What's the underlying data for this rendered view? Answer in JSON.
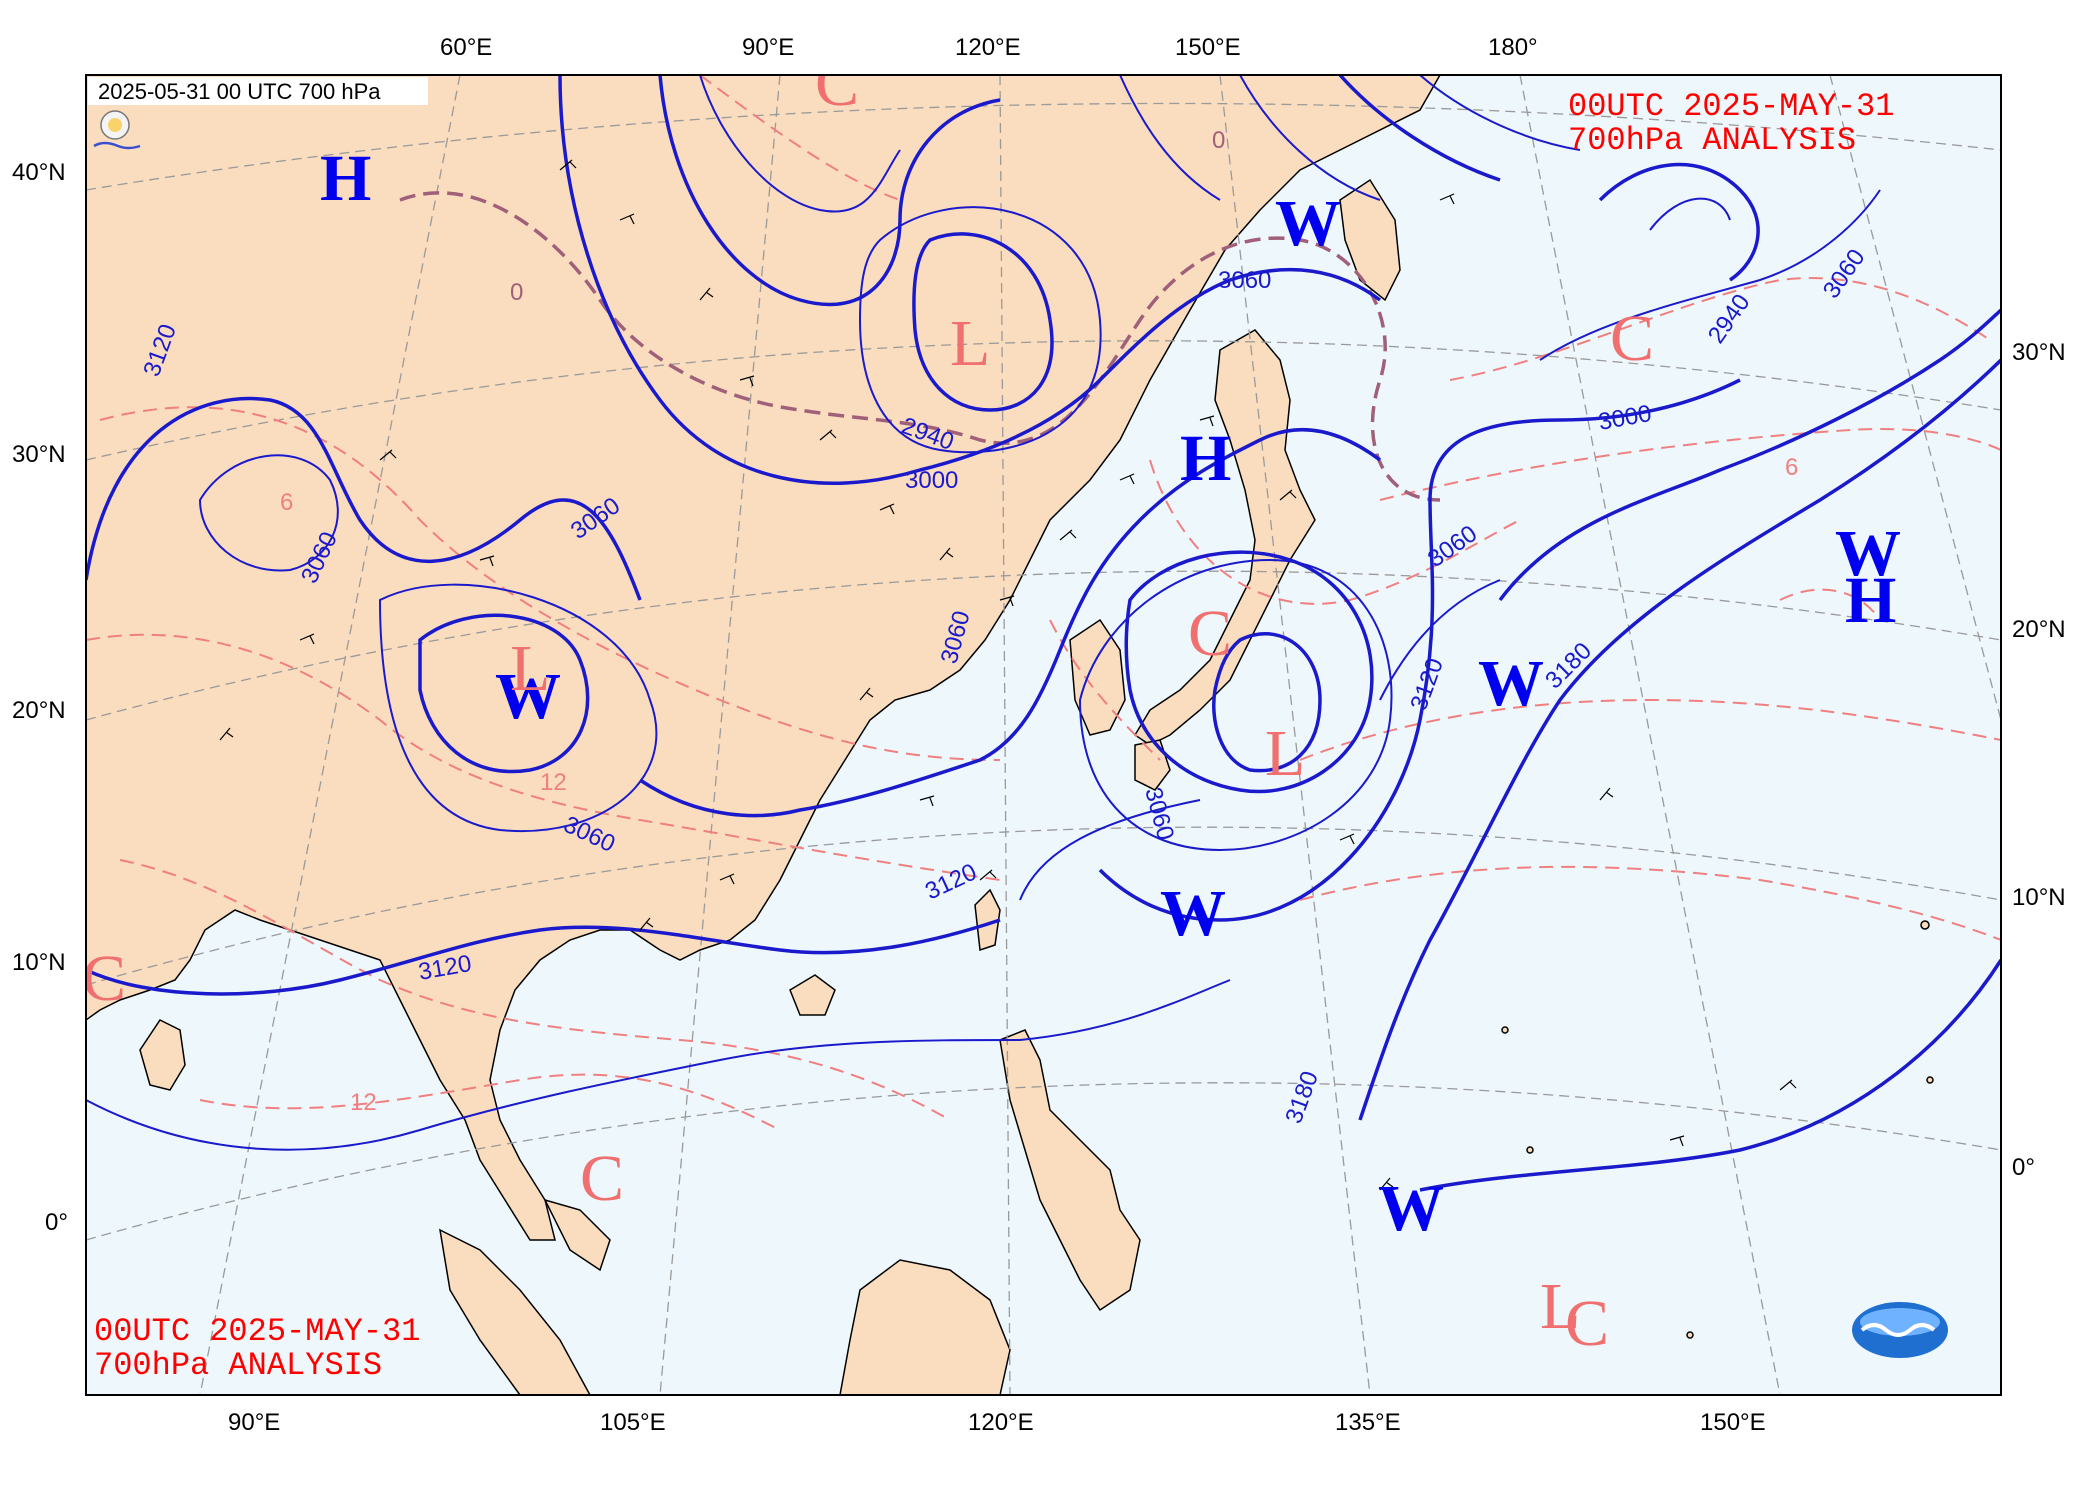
{
  "stamp": "2025-05-31 00 UTC 700 hPa",
  "title": {
    "line1": "00UTC  2025-MAY-31",
    "line2": "700hPa ANALYSIS"
  },
  "axes": {
    "top": [
      "60°E",
      "90°E",
      "120°E",
      "150°E",
      "180°"
    ],
    "bottom": [
      "90°E",
      "105°E",
      "120°E",
      "135°E",
      "150°E"
    ],
    "left": [
      "40°N",
      "30°N",
      "20°N",
      "10°N",
      "0°"
    ],
    "right": [
      "30°N",
      "20°N",
      "10°N",
      "0°"
    ]
  },
  "systems": [
    {
      "label": "H",
      "color": "blue"
    },
    {
      "label": "H",
      "color": "blue"
    },
    {
      "label": "W",
      "color": "blue"
    },
    {
      "label": "H",
      "color": "blue"
    },
    {
      "label": "W",
      "color": "blue"
    },
    {
      "label": "W",
      "color": "blue"
    },
    {
      "label": "W",
      "color": "blue"
    },
    {
      "label": "W",
      "color": "blue"
    },
    {
      "label": "W",
      "color": "blue"
    },
    {
      "label": "L",
      "color": "red"
    },
    {
      "label": "L",
      "color": "red"
    },
    {
      "label": "L",
      "color": "red"
    },
    {
      "label": "C",
      "color": "red"
    },
    {
      "label": "C",
      "color": "red"
    },
    {
      "label": "C",
      "color": "red"
    },
    {
      "label": "C",
      "color": "red"
    },
    {
      "label": "C",
      "color": "red"
    },
    {
      "label": "L",
      "color": "red"
    },
    {
      "label": "C",
      "color": "red"
    }
  ],
  "contour_labels": [
    "3120",
    "3060",
    "3060",
    "3060",
    "3000",
    "2940",
    "3060",
    "3060",
    "3060",
    "3120",
    "3120",
    "3000",
    "3060",
    "3120",
    "3180",
    "3180",
    "2940",
    "3060",
    "0",
    "0",
    "6",
    "12",
    "12",
    "6"
  ],
  "colors": {
    "land": "#fadcbe",
    "ocean": "#eef7fb",
    "height_contour": "#1a1acc",
    "temp_isotherm": "#f08080",
    "zero_isotherm": "#a0607a",
    "graticule": "#9a9a9a"
  }
}
